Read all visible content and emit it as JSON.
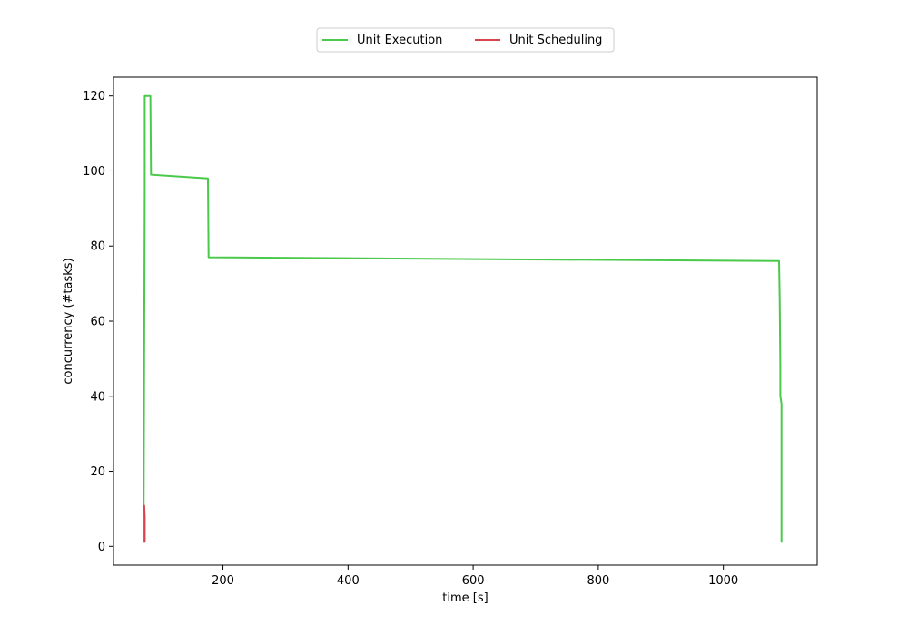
{
  "chart_data": {
    "type": "line",
    "title": "",
    "xlabel": "time [s]",
    "ylabel": "concurrency (#tasks)",
    "xlim": [
      25,
      1150
    ],
    "ylim": [
      -5,
      125
    ],
    "x_ticks": [
      200,
      400,
      600,
      800,
      1000
    ],
    "y_ticks": [
      0,
      20,
      40,
      60,
      80,
      100,
      120
    ],
    "grid": false,
    "legend_position": "top-center",
    "series": [
      {
        "name": "Unit Execution",
        "color": "#4bc94b",
        "x": [
          73,
          75,
          75,
          84,
          85,
          176,
          177,
          1089,
          1090,
          1091,
          1091,
          1093,
          1093
        ],
        "y": [
          1,
          95,
          120,
          120,
          99,
          98,
          77,
          76,
          66,
          48,
          40,
          38,
          1
        ]
      },
      {
        "name": "Unit Scheduling",
        "color": "#d9434e",
        "x": [
          74,
          75,
          75
        ],
        "y": [
          11,
          8,
          1
        ]
      }
    ]
  }
}
